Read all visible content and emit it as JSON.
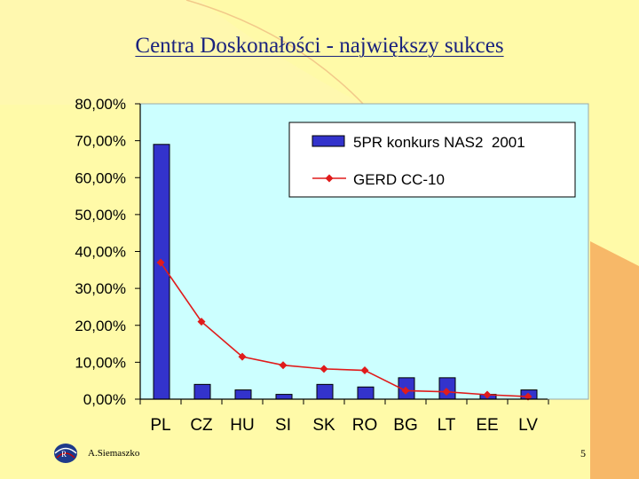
{
  "slide": {
    "title": "Centra Doskonałości - największy sukces",
    "author": "A.Siemaszko",
    "page_number": "5"
  },
  "colors": {
    "background": "#fffaa8",
    "accent_orange": "#f7b868",
    "plot_area": "#ccffff",
    "bar_fill": "#3333cc",
    "line": "#e01b1b"
  },
  "chart_data": {
    "type": "bar",
    "categories": [
      "PL",
      "CZ",
      "HU",
      "SI",
      "SK",
      "RO",
      "BG",
      "LT",
      "EE",
      "LV"
    ],
    "series": [
      {
        "name": "5PR konkurs NAS2  2001",
        "type": "bar",
        "values": [
          69.0,
          4.0,
          2.5,
          1.3,
          4.0,
          3.3,
          5.8,
          5.8,
          1.3,
          2.5
        ]
      },
      {
        "name": "GERD CC-10",
        "type": "line",
        "values": [
          37.0,
          21.0,
          11.5,
          9.2,
          8.2,
          7.8,
          2.3,
          2.0,
          1.2,
          0.7
        ]
      }
    ],
    "yticks": [
      "0,00%",
      "10,00%",
      "20,00%",
      "30,00%",
      "40,00%",
      "50,00%",
      "60,00%",
      "70,00%",
      "80,00%"
    ],
    "ylim": [
      0,
      80
    ],
    "legend_position": "top-right",
    "grid": false
  }
}
